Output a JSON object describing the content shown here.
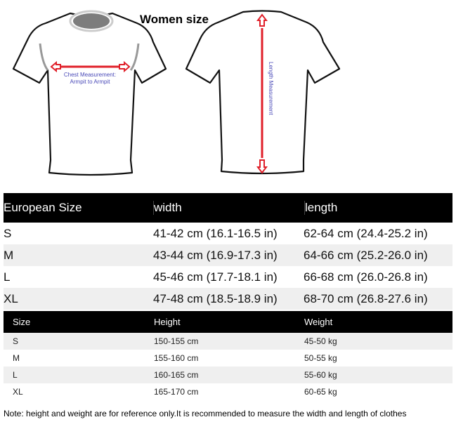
{
  "title": "Women size",
  "illustration": {
    "chest_label_line1": "Chest Measurement:",
    "chest_label_line2": "Armpit to Armpit",
    "length_label": "Length Measurement",
    "arrow_color": "#e0202a",
    "label_color": "#4a4ab8"
  },
  "size_table": {
    "headers": [
      "European Size",
      "width",
      "length"
    ],
    "rows": [
      [
        "S",
        "41-42 cm (16.1-16.5 in)",
        "62-64 cm (24.4-25.2 in)"
      ],
      [
        "M",
        "43-44 cm (16.9-17.3 in)",
        "64-66 cm (25.2-26.0 in)"
      ],
      [
        "L",
        "45-46 cm (17.7-18.1 in)",
        "66-68 cm (26.0-26.8 in)"
      ],
      [
        "XL",
        "47-48 cm (18.5-18.9 in)",
        "68-70 cm (26.8-27.6 in)"
      ]
    ]
  },
  "body_table": {
    "headers": [
      "Size",
      "Height",
      "Weight"
    ],
    "rows": [
      [
        "S",
        "150-155 cm",
        "45-50 kg"
      ],
      [
        "M",
        "155-160 cm",
        "50-55 kg"
      ],
      [
        "L",
        "160-165 cm",
        "55-60 kg"
      ],
      [
        "XL",
        "165-170 cm",
        "60-65 kg"
      ]
    ]
  },
  "note": "Note: height and weight are for reference only.It is recommended to measure the width and length of clothes"
}
